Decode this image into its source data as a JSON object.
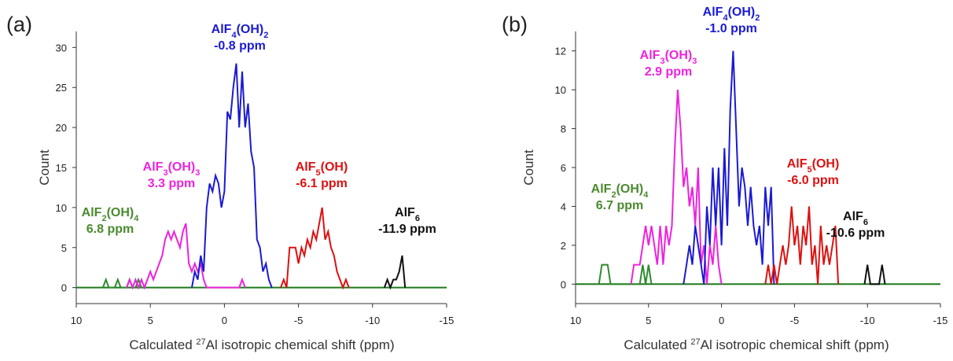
{
  "chart_data": [
    {
      "type": "line",
      "panel_label": "(a)",
      "xlabel": {
        "prefix": "Calculated ",
        "sup": "27",
        "suffix": "Al isotropic chemical shift (ppm)"
      },
      "ylabel": "Count",
      "xlim": [
        10,
        -15
      ],
      "ylim": [
        -2,
        32
      ],
      "xticks": [
        10,
        5,
        0,
        -5,
        -10,
        -15
      ],
      "yticks": [
        0,
        5,
        10,
        15,
        20,
        25,
        30
      ],
      "baseline_color": "#1e7a1e",
      "series": [
        {
          "name": "AlF2(OH)4",
          "color": "#2e8b2e",
          "line_width": 2,
          "x": [
            8.2,
            8.0,
            7.8,
            7.4,
            7.2,
            7.0,
            6.6,
            6.4,
            6.2,
            6.0,
            5.8,
            5.6,
            5.4
          ],
          "y": [
            0,
            1,
            0,
            0,
            1,
            0,
            0,
            1,
            0,
            0,
            1,
            0,
            0
          ]
        },
        {
          "name": "AlF3(OH)3",
          "color": "#ee22dd",
          "line_width": 2,
          "x": [
            6.6,
            6.4,
            6.2,
            6.0,
            5.8,
            5.6,
            5.4,
            5.2,
            5.0,
            4.8,
            4.6,
            4.4,
            4.2,
            4.0,
            3.8,
            3.6,
            3.4,
            3.2,
            3.0,
            2.8,
            2.6,
            2.4,
            2.2,
            2.0,
            1.8,
            1.6,
            1.4,
            1.2,
            1.0,
            1.2,
            1.0,
            0.8,
            0.6,
            0.4,
            0.2,
            0.0,
            -0.2,
            -0.4,
            -0.6,
            -1.0,
            -1.2,
            -1.4
          ],
          "y": [
            0,
            1,
            0,
            1,
            0,
            1,
            0,
            1,
            2,
            1,
            2,
            3,
            4,
            6,
            7,
            6,
            7,
            6,
            5,
            7,
            8,
            3,
            2,
            3,
            2,
            3,
            1,
            0,
            0,
            0,
            0,
            0,
            0,
            0,
            0,
            0,
            0,
            0,
            0,
            0,
            1,
            0
          ]
        },
        {
          "name": "AlF4(OH)2",
          "color": "#1a1ad4",
          "line_width": 2,
          "x": [
            2.2,
            2.0,
            1.8,
            1.6,
            1.4,
            1.2,
            1.0,
            0.8,
            0.6,
            0.4,
            0.2,
            0.0,
            -0.2,
            -0.4,
            -0.6,
            -0.8,
            -1.0,
            -1.2,
            -1.4,
            -1.6,
            -1.8,
            -2.0,
            -2.2,
            -2.4,
            -2.6,
            -2.8,
            -3.0,
            -3.2
          ],
          "y": [
            0,
            2,
            1,
            4,
            2,
            10,
            13,
            12,
            14,
            13,
            10,
            12,
            22,
            21,
            25,
            28,
            20,
            27,
            20,
            23,
            17,
            15,
            6,
            5,
            2,
            3,
            1,
            0
          ]
        },
        {
          "name": "AlF5(OH)",
          "color": "#dd1111",
          "line_width": 2,
          "x": [
            -3.8,
            -4.0,
            -4.2,
            -4.4,
            -4.6,
            -4.8,
            -5.0,
            -5.2,
            -5.4,
            -5.6,
            -5.8,
            -6.0,
            -6.2,
            -6.4,
            -6.6,
            -6.8,
            -7.0,
            -7.2,
            -7.4,
            -7.6,
            -7.8,
            -8.0,
            -8.2,
            -8.4
          ],
          "y": [
            0,
            1,
            0,
            5,
            5,
            5,
            3,
            5,
            4,
            6,
            5,
            7,
            6,
            8,
            10,
            6,
            7,
            5,
            4,
            2,
            1,
            0,
            1,
            0
          ]
        },
        {
          "name": "AlF6",
          "color": "#111111",
          "line_width": 2,
          "x": [
            -10.8,
            -11.0,
            -11.2,
            -11.4,
            -11.6,
            -11.8,
            -12.0,
            -12.2
          ],
          "y": [
            0,
            1,
            0,
            1,
            1,
            2,
            4,
            0
          ]
        }
      ],
      "annotations": [
        {
          "base": "AlF",
          "sub1": "4",
          "mid": "(OH)",
          "sub2": "2",
          "shift": "-0.8 ppm",
          "color": "#1a1ad4"
        },
        {
          "base": "AlF",
          "sub1": "3",
          "mid": "(OH)",
          "sub2": "3",
          "shift": "3.3 ppm",
          "color": "#ee22dd"
        },
        {
          "base": "AlF",
          "sub1": "5",
          "mid": "(OH)",
          "sub2": "",
          "shift": "-6.1 ppm",
          "color": "#dd1111"
        },
        {
          "base": "AlF",
          "sub1": "2",
          "mid": "(OH)",
          "sub2": "4",
          "shift": "6.8 ppm",
          "color": "#4a8a2e"
        },
        {
          "base": "AlF",
          "sub1": "6",
          "mid": "",
          "sub2": "",
          "shift": "-11.9 ppm",
          "color": "#111111"
        }
      ]
    },
    {
      "type": "line",
      "panel_label": "(b)",
      "xlabel": {
        "prefix": "Calculated ",
        "sup": "27",
        "suffix": "Al isotropic chemical shift (ppm)"
      },
      "ylabel": "Count",
      "xlim": [
        10,
        -15
      ],
      "ylim": [
        -1,
        13
      ],
      "xticks": [
        10,
        5,
        0,
        -5,
        -10,
        -15
      ],
      "yticks": [
        0,
        2,
        4,
        6,
        8,
        10,
        12
      ],
      "baseline_color": "#1e7a1e",
      "series": [
        {
          "name": "AlF2(OH)4",
          "color": "#2e8b2e",
          "line_width": 2,
          "x": [
            8.4,
            8.2,
            7.8,
            7.6,
            5.6,
            5.4,
            5.2,
            5.0,
            4.8
          ],
          "y": [
            0,
            1,
            1,
            0,
            0,
            1,
            0,
            1,
            0
          ]
        },
        {
          "name": "AlF3(OH)3",
          "color": "#ee22dd",
          "line_width": 2,
          "x": [
            6.2,
            6.0,
            5.8,
            5.6,
            5.4,
            5.2,
            5.0,
            4.8,
            4.6,
            4.4,
            4.2,
            4.0,
            3.8,
            3.6,
            3.4,
            3.2,
            3.0,
            2.8,
            2.6,
            2.4,
            2.2,
            2.0,
            1.8,
            1.6,
            1.4,
            1.2,
            1.0,
            0.8,
            0.6,
            0.4,
            0.2,
            0.0
          ],
          "y": [
            0,
            1,
            1,
            1,
            2,
            3,
            2,
            3,
            2,
            1,
            3,
            1,
            3,
            2,
            3,
            7,
            10,
            8,
            5,
            6,
            4,
            5,
            3,
            6,
            1,
            2,
            0,
            2,
            1,
            3,
            1,
            0
          ]
        },
        {
          "name": "AlF4(OH)2",
          "color": "#1a1ad4",
          "line_width": 2,
          "x": [
            2.6,
            2.4,
            2.2,
            2.0,
            1.8,
            1.6,
            1.4,
            1.2,
            1.0,
            0.8,
            0.6,
            0.4,
            0.2,
            0.0,
            -0.2,
            -0.4,
            -0.6,
            -0.8,
            -1.0,
            -1.2,
            -1.4,
            -1.6,
            -1.8,
            -2.0,
            -2.2,
            -2.4,
            -2.6,
            -2.8,
            -3.0,
            -3.2,
            -3.4,
            -3.6
          ],
          "y": [
            0,
            1,
            2,
            1,
            3,
            2,
            1,
            0,
            4,
            2,
            6,
            3,
            6,
            2,
            7,
            3,
            9,
            12,
            8,
            4,
            6,
            5,
            3,
            5,
            3,
            2,
            3,
            1,
            5,
            3,
            5,
            0
          ]
        },
        {
          "name": "AlF5(OH)",
          "color": "#dd1111",
          "line_width": 2,
          "x": [
            -3.0,
            -3.2,
            -3.4,
            -3.6,
            -3.8,
            -4.0,
            -4.2,
            -4.4,
            -4.6,
            -4.8,
            -5.0,
            -5.2,
            -5.4,
            -5.6,
            -5.8,
            -6.0,
            -6.2,
            -6.4,
            -6.6,
            -6.8,
            -7.0,
            -7.2,
            -7.4,
            -7.6,
            -7.8,
            -8.0
          ],
          "y": [
            0,
            1,
            0,
            1,
            0,
            1,
            2,
            1,
            2,
            4,
            2,
            3,
            1,
            3,
            2,
            4,
            1,
            2,
            0,
            3,
            1,
            2,
            1,
            2,
            3,
            0
          ]
        },
        {
          "name": "AlF6",
          "color": "#111111",
          "line_width": 2,
          "x": [
            -9.8,
            -10.0,
            -10.2,
            -10.8,
            -11.0,
            -11.2
          ],
          "y": [
            0,
            1,
            0,
            0,
            1,
            0
          ]
        }
      ],
      "annotations": [
        {
          "base": "AlF",
          "sub1": "4",
          "mid": "(OH)",
          "sub2": "2",
          "shift": "-1.0 ppm",
          "color": "#1a1ad4"
        },
        {
          "base": "AlF",
          "sub1": "3",
          "mid": "(OH)",
          "sub2": "3",
          "shift": "2.9 ppm",
          "color": "#ee22dd"
        },
        {
          "base": "AlF",
          "sub1": "5",
          "mid": "(OH)",
          "sub2": "",
          "shift": "-6.0 ppm",
          "color": "#dd1111"
        },
        {
          "base": "AlF",
          "sub1": "2",
          "mid": "(OH)",
          "sub2": "4",
          "shift": "6.7 ppm",
          "color": "#4a8a2e"
        },
        {
          "base": "AlF",
          "sub1": "6",
          "mid": "",
          "sub2": "",
          "shift": "-10.6 ppm",
          "color": "#111111"
        }
      ]
    }
  ]
}
